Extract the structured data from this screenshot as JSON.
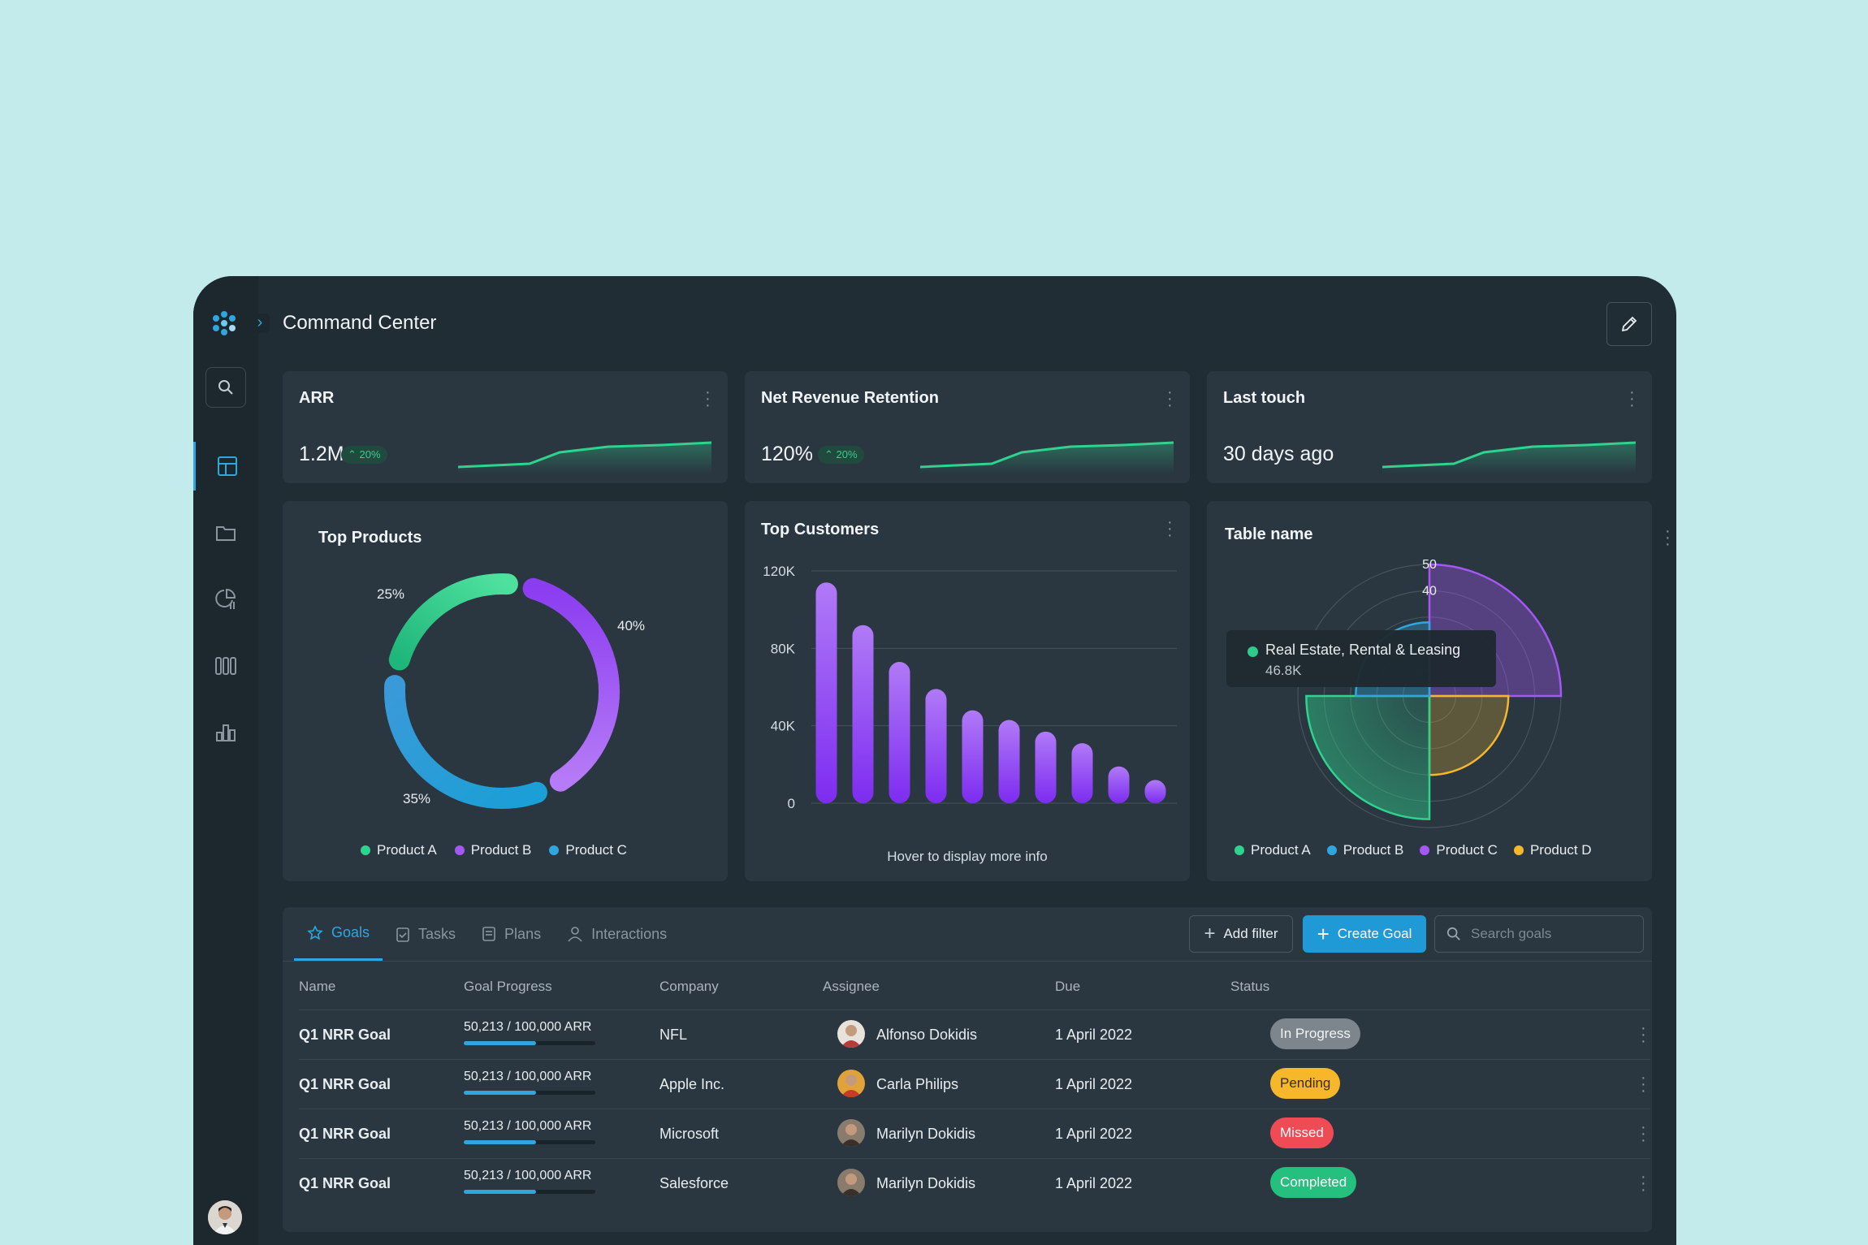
{
  "app": {
    "title": "Command Center"
  },
  "kpis": [
    {
      "title": "ARR",
      "value": "1.2M",
      "badge": "20%"
    },
    {
      "title": "Net Revenue Retention",
      "value": "120%",
      "badge": "20%"
    },
    {
      "title": "Last touch",
      "value": "30 days ago",
      "badge": ""
    }
  ],
  "top_products": {
    "title": "Top Products",
    "labels": {
      "a": "25%",
      "b": "40%",
      "c": "35%"
    },
    "legend": [
      "Product A",
      "Product B",
      "Product C"
    ]
  },
  "top_customers": {
    "title": "Top Customers",
    "footer": "Hover to display more info",
    "yticks": [
      "120K",
      "80K",
      "40K",
      "0"
    ]
  },
  "table_widget": {
    "title": "Table name",
    "ticks": [
      "50",
      "40"
    ],
    "tooltip": {
      "name": "Real Estate, Rental & Leasing",
      "value": "46.8K"
    },
    "legend": [
      "Product A",
      "Product B",
      "Product C",
      "Product D"
    ]
  },
  "chart_data": [
    {
      "type": "pie",
      "title": "Top Products",
      "categories": [
        "Product A",
        "Product B",
        "Product C"
      ],
      "values": [
        25,
        40,
        35
      ]
    },
    {
      "type": "bar",
      "title": "Top Customers",
      "categories": [
        "1",
        "2",
        "3",
        "4",
        "5",
        "6",
        "7",
        "8",
        "9",
        "10"
      ],
      "values": [
        114000,
        92000,
        73000,
        59000,
        48000,
        43000,
        37000,
        31000,
        19000,
        12000
      ],
      "ylim": [
        0,
        120000
      ]
    },
    {
      "type": "area",
      "title": "Table name",
      "categories": [
        "Product A",
        "Product B",
        "Product C",
        "Product D"
      ],
      "values": [
        46.8,
        28,
        50,
        30
      ],
      "ylim": [
        0,
        50
      ]
    }
  ],
  "colors": {
    "product_a": "#2ed38d",
    "product_b": "#2fa7de",
    "product_c": "#a557f5",
    "product_d": "#f6b72a",
    "accent": "#2fa7de"
  },
  "tabs": [
    {
      "label": "Goals",
      "icon": "star-icon"
    },
    {
      "label": "Tasks",
      "icon": "clipboard-icon"
    },
    {
      "label": "Plans",
      "icon": "document-icon"
    },
    {
      "label": "Interactions",
      "icon": "user-icon"
    }
  ],
  "actions": {
    "add_filter": "Add filter",
    "create_goal": "Create Goal",
    "search_placeholder": "Search goals"
  },
  "table": {
    "headers": [
      "Name",
      "Goal Progress",
      "Company",
      "Assignee",
      "Due",
      "Status"
    ],
    "rows": [
      {
        "name": "Q1 NRR Goal",
        "progress": "50,213 / 100,000 ARR",
        "progress_value": 0.50213,
        "company": "NFL",
        "assignee": "Alfonso Dokidis",
        "due": "1 April 2022",
        "status": "In Progress"
      },
      {
        "name": "Q1 NRR Goal",
        "progress": "50,213 / 100,000 ARR",
        "progress_value": 0.50213,
        "company": "Apple Inc.",
        "assignee": "Carla Philips",
        "due": "1 April 2022",
        "status": "Pending"
      },
      {
        "name": "Q1 NRR Goal",
        "progress": "50,213 / 100,000 ARR",
        "progress_value": 0.50213,
        "company": "Microsoft",
        "assignee": "Marilyn Dokidis",
        "due": "1 April 2022",
        "status": "Missed"
      },
      {
        "name": "Q1 NRR Goal",
        "progress": "50,213 / 100,000 ARR",
        "progress_value": 0.50213,
        "company": "Salesforce",
        "assignee": "Marilyn Dokidis",
        "due": "1 April 2022",
        "status": "Completed"
      }
    ]
  }
}
